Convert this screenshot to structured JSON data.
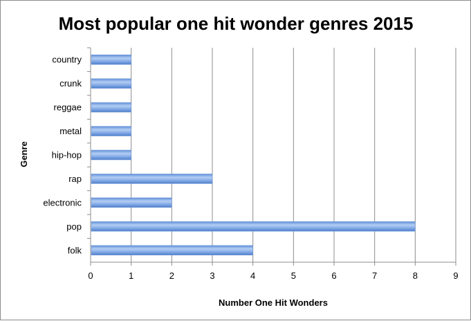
{
  "chart_data": {
    "type": "bar",
    "orientation": "horizontal",
    "title": "Most popular one hit wonder genres 2015",
    "xlabel": "Number One Hit Wonders",
    "ylabel": "Genre",
    "categories": [
      "country",
      "crunk",
      "reggae",
      "metal",
      "hip-hop",
      "rap",
      "electronic",
      "pop",
      "folk"
    ],
    "values": [
      1,
      1,
      1,
      1,
      1,
      3,
      2,
      8,
      4
    ],
    "xlim": [
      0,
      9
    ],
    "xticks": [
      "0",
      "1",
      "2",
      "3",
      "4",
      "5",
      "6",
      "7",
      "8",
      "9"
    ],
    "grid": "vertical",
    "legend": "none",
    "bar_color": "#7aa6e6"
  }
}
